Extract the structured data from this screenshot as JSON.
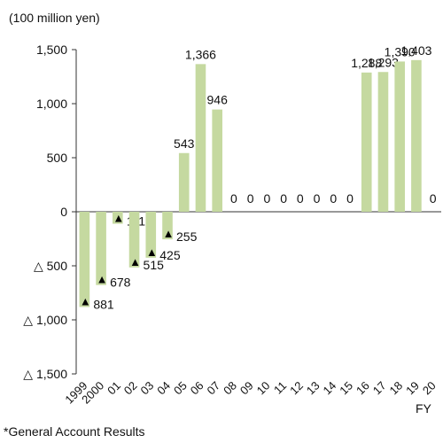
{
  "chart_data": {
    "type": "bar",
    "unit_label": "(100 million yen)",
    "x_axis_suffix": "FY",
    "footnote": "*General Account Results",
    "negative_marker": "▲",
    "categories": [
      "1999",
      "2000",
      "01",
      "02",
      "03",
      "04",
      "05",
      "06",
      "07",
      "08",
      "09",
      "10",
      "11",
      "12",
      "13",
      "14",
      "15",
      "16",
      "17",
      "18",
      "19",
      "20"
    ],
    "values": [
      -881,
      -678,
      -111,
      -515,
      -425,
      -255,
      543,
      1366,
      946,
      0,
      0,
      0,
      0,
      0,
      0,
      0,
      0,
      1288,
      1293,
      1390,
      1403,
      0
    ],
    "data_labels": [
      "881",
      "678",
      "111",
      "515",
      "425",
      "255",
      "543",
      "1,366",
      "946",
      "0",
      "0",
      "0",
      "0",
      "0",
      "0",
      "0",
      "0",
      "1,288",
      "1,293",
      "1,390",
      "1,403",
      "0"
    ],
    "y_ticks": [
      1500,
      1000,
      500,
      0,
      -500,
      -1000,
      -1500
    ],
    "y_tick_labels": [
      "1,500",
      "1,000",
      "500",
      "0",
      "△ 500",
      "△ 1,000",
      "△ 1,500"
    ],
    "ylim": [
      -1500,
      1500
    ],
    "bar_color": "#c5d9a0",
    "grid": false,
    "legend": "none"
  }
}
